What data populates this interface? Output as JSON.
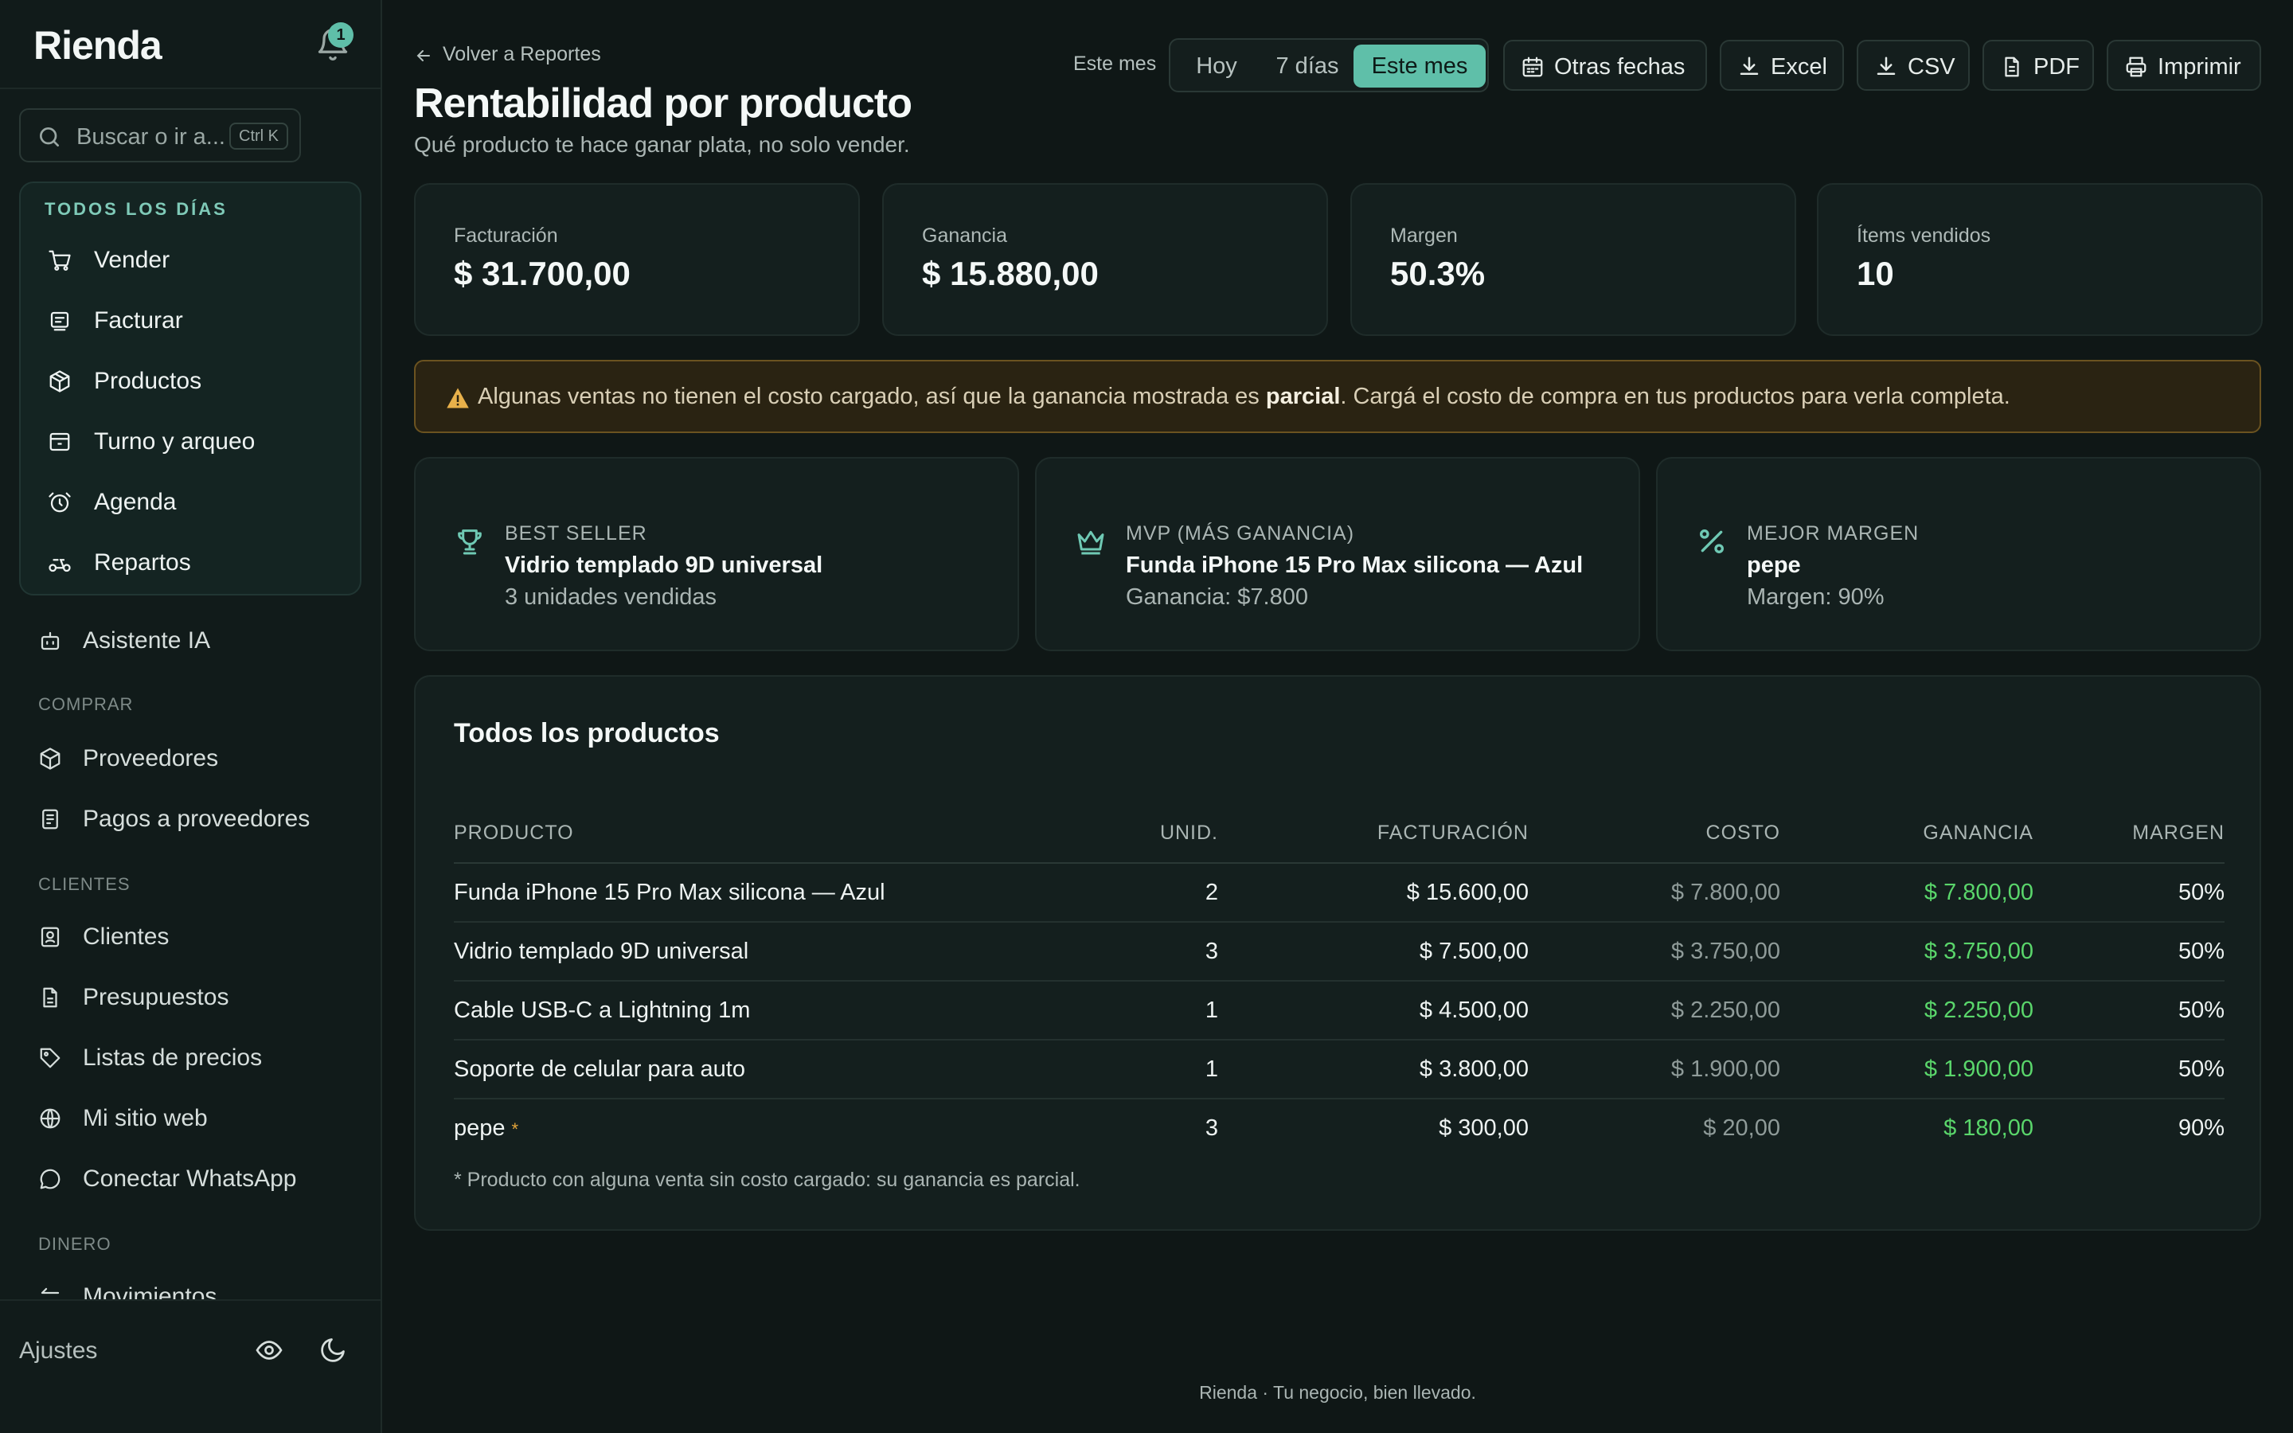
{
  "app": {
    "brand": "Rienda",
    "notification_count": "1"
  },
  "sidebar": {
    "search_placeholder": "Buscar o ir a...",
    "search_shortcut": "Ctrl K",
    "daily_title": "TODOS LOS DÍAS",
    "daily_items": [
      {
        "label": "Vender",
        "icon": "cart-icon"
      },
      {
        "label": "Facturar",
        "icon": "invoice-icon"
      },
      {
        "label": "Productos",
        "icon": "box-icon"
      },
      {
        "label": "Turno y arqueo",
        "icon": "register-icon"
      },
      {
        "label": "Agenda",
        "icon": "alarm-icon"
      },
      {
        "label": "Repartos",
        "icon": "scooter-icon"
      }
    ],
    "assistant": "Asistente IA",
    "section_comprar": "COMPRAR",
    "comprar_items": [
      {
        "label": "Proveedores",
        "icon": "box-icon"
      },
      {
        "label": "Pagos a proveedores",
        "icon": "receipt-icon"
      }
    ],
    "section_clientes": "CLIENTES",
    "clientes_items": [
      {
        "label": "Clientes",
        "icon": "contacts-icon"
      },
      {
        "label": "Presupuestos",
        "icon": "document-icon"
      },
      {
        "label": "Listas de precios",
        "icon": "tag-icon"
      },
      {
        "label": "Mi sitio web",
        "icon": "globe-icon"
      },
      {
        "label": "Conectar WhatsApp",
        "icon": "chat-icon"
      }
    ],
    "section_dinero": "DINERO",
    "dinero_items": [
      {
        "label": "Movimientos",
        "icon": "arrows-icon"
      }
    ],
    "settings": "Ajustes"
  },
  "header": {
    "back_link": "Volver a Reportes",
    "title": "Rentabilidad por producto",
    "subtitle": "Qué producto te hace ganar plata, no solo vender.",
    "range_label": "Este mes",
    "range_options": [
      "Hoy",
      "7 días",
      "Este mes"
    ],
    "range_selected": "Este mes",
    "other_dates": "Otras fechas",
    "export_excel": "Excel",
    "export_csv": "CSV",
    "export_pdf": "PDF",
    "print": "Imprimir"
  },
  "kpis": [
    {
      "label": "Facturación",
      "value": "$ 31.700,00"
    },
    {
      "label": "Ganancia",
      "value": "$ 15.880,00"
    },
    {
      "label": "Margen",
      "value": "50.3%"
    },
    {
      "label": "Ítems vendidos",
      "value": "10"
    }
  ],
  "warning": {
    "before": "Algunas ventas no tienen el costo cargado, así que la ganancia mostrada es ",
    "bold": "parcial",
    "after": ". Cargá el costo de compra en tus productos para verla completa."
  },
  "highlights": [
    {
      "kicker": "BEST SELLER",
      "name": "Vidrio templado 9D universal",
      "detail": "3 unidades vendidas",
      "icon": "trophy-icon"
    },
    {
      "kicker": "MVP (MÁS GANANCIA)",
      "name": "Funda iPhone 15 Pro Max silicona — Azul",
      "detail": "Ganancia: $7.800",
      "icon": "crown-icon"
    },
    {
      "kicker": "MEJOR MARGEN",
      "name": "pepe",
      "detail": "Margen: 90%",
      "icon": "percent-icon"
    }
  ],
  "table": {
    "title": "Todos los productos",
    "columns": [
      "PRODUCTO",
      "UNID.",
      "FACTURACIÓN",
      "COSTO",
      "GANANCIA",
      "MARGEN"
    ],
    "rows": [
      {
        "product": "Funda iPhone 15 Pro Max silicona — Azul",
        "units": "2",
        "revenue": "$ 15.600,00",
        "cost": "$ 7.800,00",
        "profit": "$ 7.800,00",
        "margin": "50%",
        "partial": false
      },
      {
        "product": "Vidrio templado 9D universal",
        "units": "3",
        "revenue": "$ 7.500,00",
        "cost": "$ 3.750,00",
        "profit": "$ 3.750,00",
        "margin": "50%",
        "partial": false
      },
      {
        "product": "Cable USB-C a Lightning 1m",
        "units": "1",
        "revenue": "$ 4.500,00",
        "cost": "$ 2.250,00",
        "profit": "$ 2.250,00",
        "margin": "50%",
        "partial": false
      },
      {
        "product": "Soporte de celular para auto",
        "units": "1",
        "revenue": "$ 3.800,00",
        "cost": "$ 1.900,00",
        "profit": "$ 1.900,00",
        "margin": "50%",
        "partial": false
      },
      {
        "product": "pepe",
        "units": "3",
        "revenue": "$ 300,00",
        "cost": "$ 20,00",
        "profit": "$ 180,00",
        "margin": "90%",
        "partial": true
      }
    ],
    "partial_mark": "*",
    "footnote": "* Producto con alguna venta sin costo cargado: su ganancia es parcial."
  },
  "footer": "Rienda · Tu negocio, bien llevado.",
  "colors": {
    "accent": "#5fbfa9",
    "profit_green": "#5ad66b",
    "warning_bg": "#2a2312",
    "warning_border": "#6b5320"
  }
}
